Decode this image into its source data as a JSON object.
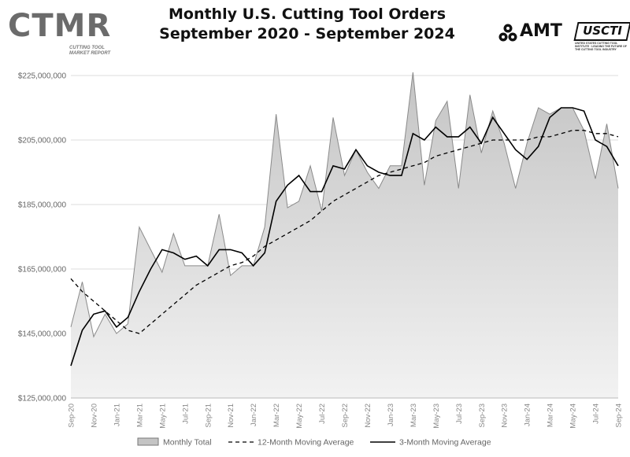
{
  "logo_left": {
    "text": "CTMR",
    "subtitle_line1": "CUTTING TOOL",
    "subtitle_line2": "MARKET REPORT"
  },
  "logo_right": {
    "amt_text": "AMT",
    "usct_text": "USCTI",
    "usct_subtitle": "UNITED STATES CUTTING TOOL INSTITUTE · LEADING THE FUTURE OF THE CUTTING TOOL INDUSTRY"
  },
  "colors": {
    "area_fill_top": "#c4c4c4",
    "area_fill_bottom": "#f2f2f2",
    "area_stroke": "#8a8a8a",
    "line_color": "#000000",
    "grid_color": "#dddddd"
  },
  "chart_data": {
    "type": "area",
    "title_line1": "Monthly U.S. Cutting Tool Orders",
    "title_line2": "September 2020 - September 2024",
    "ylim": [
      125000000,
      225000000
    ],
    "y_ticks": [
      125000000,
      145000000,
      165000000,
      185000000,
      205000000,
      225000000
    ],
    "y_tick_labels": [
      "$125,000,000",
      "$145,000,000",
      "$165,000,000",
      "$185,000,000",
      "$205,000,000",
      "$225,000,000"
    ],
    "x_tick_labels": [
      "Sep-20",
      "Nov-20",
      "Jan-21",
      "Mar-21",
      "May-21",
      "Jul-21",
      "Sep-21",
      "Nov-21",
      "Jan-22",
      "Mar-22",
      "May-22",
      "Jul-22",
      "Sep-22",
      "Nov-22",
      "Jan-23",
      "Mar-23",
      "May-23",
      "Jul-23",
      "Sep-23",
      "Nov-23",
      "Jan-24",
      "Mar-24",
      "May-24",
      "Jul-24",
      "Sep-24"
    ],
    "grid": true,
    "legend_position": "bottom",
    "legend": [
      "Monthly Total",
      "12-Month Moving Average",
      "3-Month Moving Average"
    ],
    "series": [
      {
        "name": "Monthly Total",
        "style": "area",
        "values": [
          147000000,
          161000000,
          144000000,
          151000000,
          145000000,
          148000000,
          178000000,
          171000000,
          164000000,
          176000000,
          166000000,
          166000000,
          166000000,
          182000000,
          163000000,
          166000000,
          166000000,
          178000000,
          213000000,
          184000000,
          186000000,
          197000000,
          183000000,
          212000000,
          194000000,
          202000000,
          195000000,
          190000000,
          197000000,
          197000000,
          226000000,
          191000000,
          211000000,
          217000000,
          190000000,
          219000000,
          201000000,
          214000000,
          204000000,
          190000000,
          204000000,
          215000000,
          213000000,
          215000000,
          215000000,
          208000000,
          193000000,
          210000000,
          190000000
        ]
      },
      {
        "name": "12-Month Moving Average",
        "style": "dashed",
        "values": [
          162000000,
          158000000,
          155000000,
          152000000,
          149000000,
          146000000,
          145000000,
          148000000,
          151000000,
          154000000,
          157000000,
          160000000,
          162000000,
          164000000,
          166000000,
          167000000,
          169000000,
          172000000,
          174000000,
          176000000,
          178000000,
          180000000,
          183000000,
          186000000,
          188000000,
          190000000,
          192000000,
          194000000,
          195000000,
          196000000,
          197000000,
          198000000,
          200000000,
          201000000,
          202000000,
          203000000,
          204000000,
          205000000,
          205000000,
          205000000,
          205000000,
          206000000,
          206000000,
          207000000,
          208000000,
          208000000,
          207000000,
          207000000,
          206000000
        ]
      },
      {
        "name": "3-Month Moving Average",
        "style": "solid",
        "values": [
          135000000,
          146000000,
          151000000,
          152000000,
          147000000,
          150000000,
          158000000,
          165000000,
          171000000,
          170000000,
          168000000,
          169000000,
          166000000,
          171000000,
          171000000,
          170000000,
          166000000,
          170000000,
          186000000,
          191000000,
          194000000,
          189000000,
          189000000,
          197000000,
          196000000,
          202000000,
          197000000,
          195000000,
          194000000,
          194000000,
          207000000,
          205000000,
          209000000,
          206000000,
          206000000,
          209000000,
          204000000,
          212000000,
          207000000,
          202000000,
          199000000,
          203000000,
          212000000,
          215000000,
          215000000,
          214000000,
          205000000,
          203000000,
          197000000
        ]
      }
    ]
  }
}
